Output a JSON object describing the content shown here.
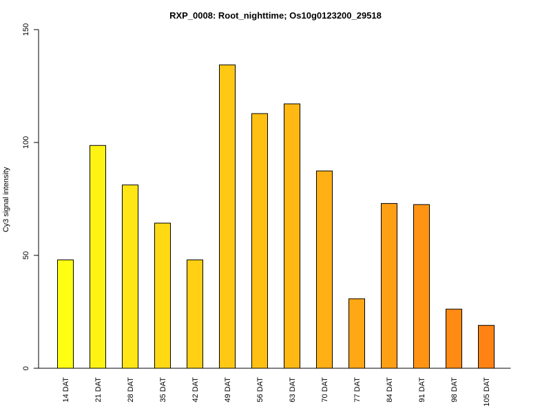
{
  "chart_data": {
    "type": "bar",
    "title": "RXP_0008: Root_nighttime; Os10g0123200_29518",
    "xlabel": "",
    "ylabel": "Cy3 signal intensity",
    "ylim": [
      0,
      150
    ],
    "yticks": [
      0,
      50,
      100,
      150
    ],
    "grid": false,
    "categories": [
      "14 DAT",
      "21 DAT",
      "28 DAT",
      "35 DAT",
      "42 DAT",
      "49 DAT",
      "56 DAT",
      "63 DAT",
      "70 DAT",
      "77 DAT",
      "84 DAT",
      "91 DAT",
      "98 DAT",
      "105 DAT"
    ],
    "values": [
      48,
      98.7,
      81.2,
      64.3,
      48,
      134.4,
      112.8,
      117.1,
      87.4,
      30.8,
      73,
      72.5,
      26.2,
      19
    ],
    "colors": [
      "#FFFF14",
      "#FFF314",
      "#FFE614",
      "#FFDA14",
      "#FFD014",
      "#FFC814",
      "#FFC014",
      "#FFB814",
      "#FFB014",
      "#FFA714",
      "#FF9F14",
      "#FF9414",
      "#FF8A14",
      "#FF8214"
    ]
  }
}
